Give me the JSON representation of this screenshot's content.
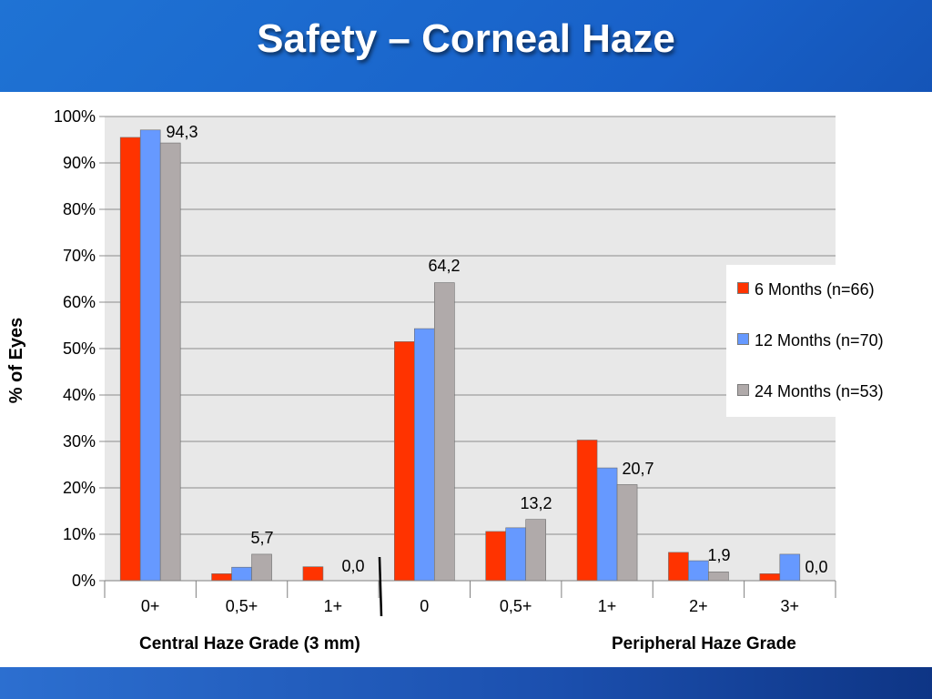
{
  "slide": {
    "title": "Safety – Corneal Haze"
  },
  "colors": {
    "background": "#1a64cc",
    "plot_area": "#e8e8e8",
    "series_6m": "#ff3300",
    "series_12m": "#6699ff",
    "series_24m": "#b0aaaa"
  },
  "chart_data": {
    "type": "bar",
    "ylabel": "% of Eyes",
    "ylim": [
      0,
      100
    ],
    "yticks": [
      "0%",
      "10%",
      "20%",
      "30%",
      "40%",
      "50%",
      "60%",
      "70%",
      "80%",
      "90%",
      "100%"
    ],
    "categories": [
      "0+",
      "0,5+",
      "1+",
      "0",
      "0,5+",
      "1+",
      "2+",
      "3+"
    ],
    "groups": [
      {
        "label": "Central Haze Grade (3 mm)",
        "categories": [
          "0+",
          "0,5+",
          "1+"
        ]
      },
      {
        "label": "Peripheral Haze Grade",
        "categories": [
          "0",
          "0,5+",
          "1+",
          "2+",
          "3+"
        ]
      }
    ],
    "series": [
      {
        "name": "6 Months (n=66)",
        "color": "#ff3300",
        "values": [
          95.5,
          1.5,
          3.0,
          51.5,
          10.6,
          30.3,
          6.1,
          1.5
        ]
      },
      {
        "name": "12 Months (n=70)",
        "color": "#6699ff",
        "values": [
          97.1,
          2.9,
          0.0,
          54.3,
          11.4,
          24.3,
          4.3,
          5.7
        ]
      },
      {
        "name": "24 Months (n=53)",
        "color": "#b0aaaa",
        "values": [
          94.3,
          5.7,
          0.0,
          64.2,
          13.2,
          20.7,
          1.9,
          0.0
        ]
      }
    ],
    "data_labels": [
      {
        "series": 2,
        "category": 0,
        "text": "94,3"
      },
      {
        "series": 2,
        "category": 1,
        "text": "5,7"
      },
      {
        "series": 2,
        "category": 2,
        "text": "0,0"
      },
      {
        "series": 2,
        "category": 3,
        "text": "64,2"
      },
      {
        "series": 2,
        "category": 4,
        "text": "13,2"
      },
      {
        "series": 2,
        "category": 5,
        "text": "20,7"
      },
      {
        "series": 2,
        "category": 6,
        "text": "1,9"
      },
      {
        "series": 2,
        "category": 7,
        "text": "0,0"
      }
    ],
    "grid": true,
    "legend_position": "right"
  }
}
